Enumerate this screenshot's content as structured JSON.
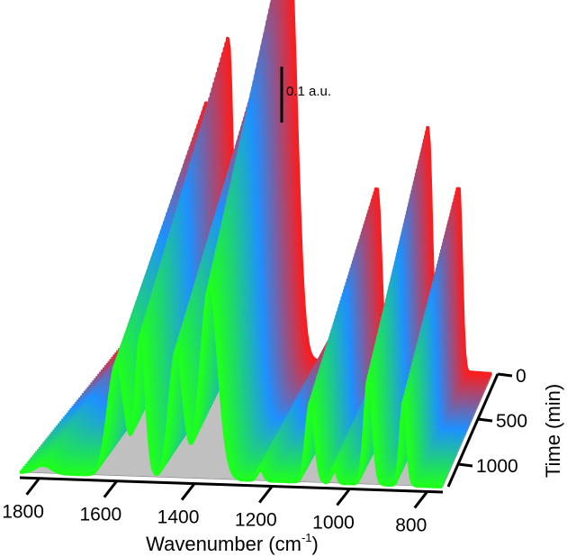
{
  "chart_data": {
    "type": "line",
    "style": "3d-waterfall",
    "xlabel": "Wavenumber (cm",
    "xlabel_sup": "-1",
    "xlabel_tail": ")",
    "ylabel": "Time (min)",
    "x_ticks": [
      "1800",
      "1600",
      "1400",
      "1200",
      "1000",
      "800"
    ],
    "time_ticks": [
      "0",
      "500",
      "1000"
    ],
    "xlim": [
      1850,
      760
    ],
    "time_range": [
      0,
      1250
    ],
    "scale_bar_label": "0.1 a.u.",
    "scale_bar_value": 0.1,
    "color_start": "#ff1b1b",
    "color_mid": "#1e90ff",
    "color_end": "#1eff1e",
    "floor_color": "#c0c0c0",
    "peaks": [
      {
        "x": 1790,
        "height": 0.02,
        "width": 30
      },
      {
        "x": 1600,
        "height": 0.28,
        "width": 30
      },
      {
        "x": 1537,
        "height": 0.35,
        "width": 18
      },
      {
        "x": 1445,
        "height": 0.32,
        "width": 25
      },
      {
        "x": 1360,
        "height": 0.48,
        "width": 32
      },
      {
        "x": 1230,
        "height": 0.03,
        "width": 12
      },
      {
        "x": 1100,
        "height": 0.2,
        "width": 16
      },
      {
        "x": 1040,
        "height": 0.04,
        "width": 10
      },
      {
        "x": 950,
        "height": 0.27,
        "width": 15
      },
      {
        "x": 860,
        "height": 0.21,
        "width": 12
      }
    ]
  }
}
